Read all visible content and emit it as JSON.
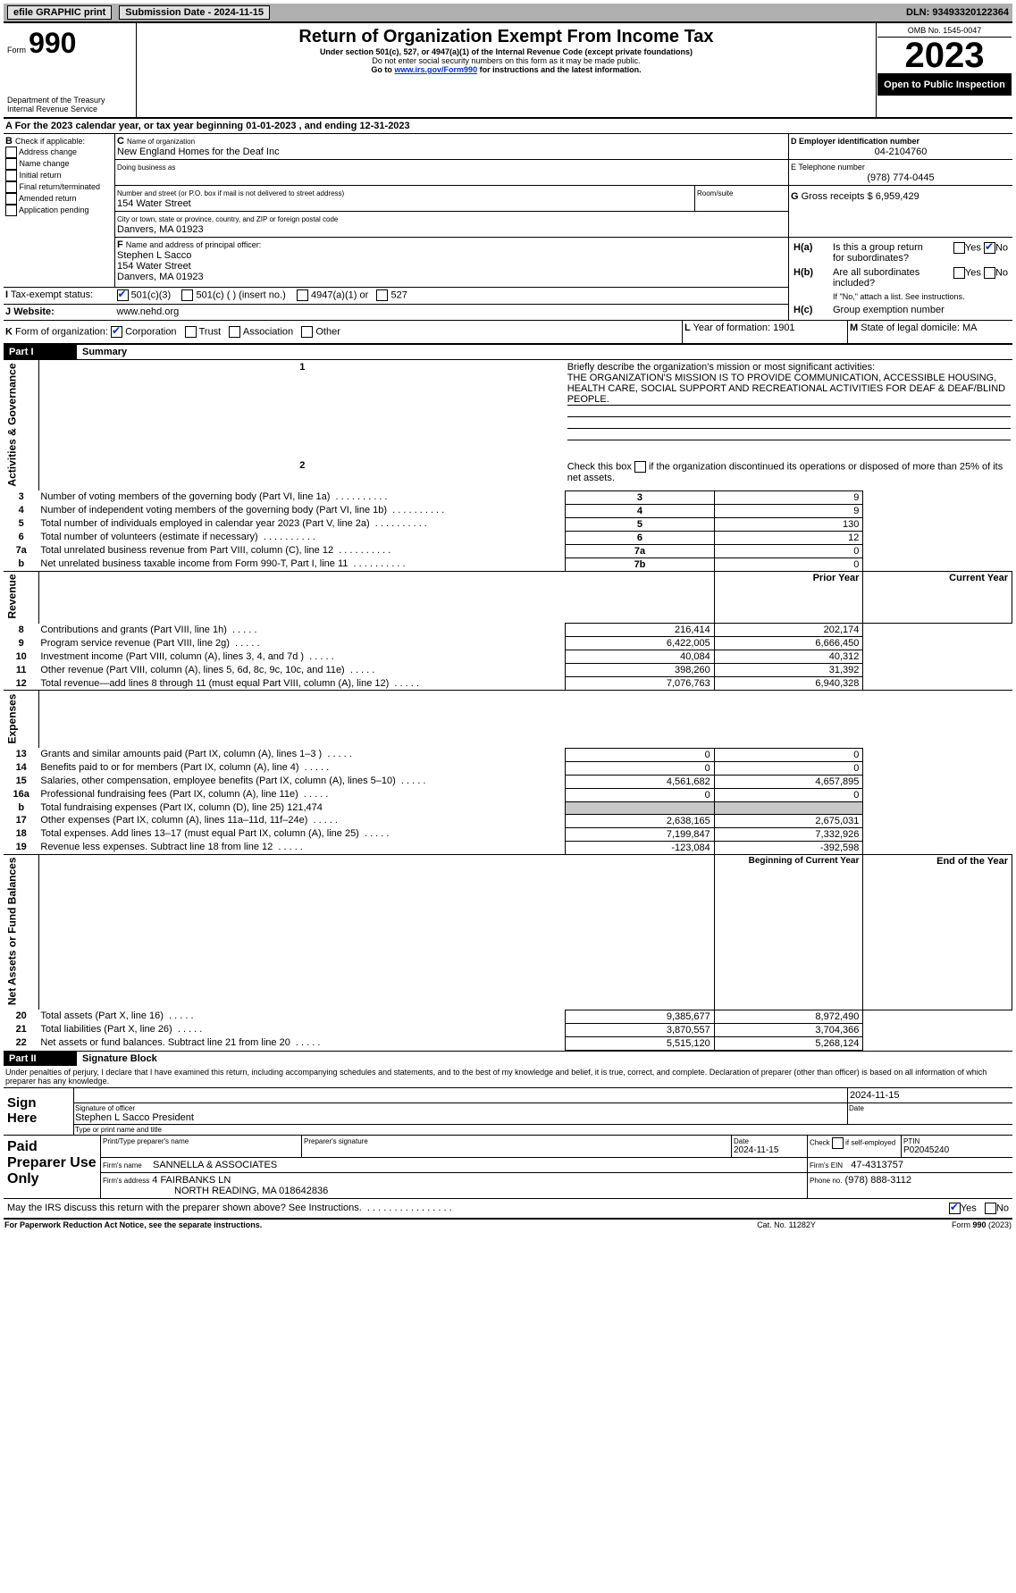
{
  "topbar": {
    "efile": "efile GRAPHIC print",
    "submission": "Submission Date - 2024-11-15",
    "dln_label": "DLN:",
    "dln": "93493320122364"
  },
  "header": {
    "form_label": "Form",
    "form_no": "990",
    "title": "Return of Organization Exempt From Income Tax",
    "subtitle": "Under section 501(c), 527, or 4947(a)(1) of the Internal Revenue Code (except private foundations)",
    "note1": "Do not enter social security numbers on this form as it may be made public.",
    "note2_prefix": "Go to ",
    "note2_link": "www.irs.gov/Form990",
    "note2_suffix": " for instructions and the latest information.",
    "dept1": "Department of the Treasury",
    "dept2": "Internal Revenue Service",
    "omb": "OMB No. 1545-0047",
    "year": "2023",
    "open_label": "Open to Public Inspection"
  },
  "A": {
    "text_prefix": "A For the 2023 calendar year, or tax year beginning ",
    "begin": "01-01-2023",
    "mid": " , and ending ",
    "end": "12-31-2023"
  },
  "B": {
    "label": "B",
    "check_label": "Check if applicable:",
    "opts": [
      "Address change",
      "Name change",
      "Initial return",
      "Final return/terminated",
      "Amended return",
      "Application pending"
    ],
    "checked": [
      false,
      false,
      false,
      false,
      false,
      false
    ]
  },
  "C": {
    "label": "C",
    "name_label": "Name of organization",
    "name": "New England Homes for the Deaf Inc",
    "dba_label": "Doing business as",
    "dba": "",
    "addr_label": "Number and street (or P.O. box if mail is not delivered to street address)",
    "room_label": "Room/suite",
    "addr": "154 Water Street",
    "city_label": "City or town, state or province, country, and ZIP or foreign postal code",
    "city": "Danvers, MA  01923"
  },
  "D": {
    "label": "D Employer identification number",
    "ein": "04-2104760"
  },
  "E": {
    "label": "E Telephone number",
    "phone": "(978) 774-0445"
  },
  "F": {
    "label": "F",
    "addr_label": "Name and address of principal officer:",
    "name": "Stephen L Sacco",
    "addr1": "154 Water Street",
    "addr2": "Danvers, MA  01923"
  },
  "G": {
    "label": "G",
    "text": "Gross receipts $",
    "val": "6,959,429"
  },
  "H": {
    "a_label": "H(a)",
    "a_text": "Is this a group return for subordinates?",
    "a_yes": "Yes",
    "a_no": "No",
    "a_checked_yes": false,
    "a_checked_no": true,
    "b_label": "H(b)",
    "b_text": "Are all subordinates included?",
    "b_yes": "Yes",
    "b_no": "No",
    "b_note": "If \"No,\" attach a list. See instructions.",
    "c_label": "H(c)",
    "c_text": "Group exemption number"
  },
  "I": {
    "label": "I",
    "text": "Tax-exempt status:",
    "opt1": "501(c)(3)",
    "opt2": "501(c) (   ) (insert no.)",
    "opt3": "4947(a)(1) or",
    "opt4": "527",
    "c1": true,
    "c2": false,
    "c3": false,
    "c4": false
  },
  "J": {
    "label": "J",
    "text": "Website:",
    "val": "www.nehd.org"
  },
  "K": {
    "label": "K",
    "text": "Form of organization:",
    "o1": "Corporation",
    "o2": "Trust",
    "o3": "Association",
    "o4": "Other",
    "c1": true,
    "c2": false,
    "c3": false,
    "c4": false
  },
  "L": {
    "label": "L",
    "text": "Year of formation:",
    "val": "1901"
  },
  "M": {
    "label": "M",
    "text": "State of legal domicile:",
    "val": "MA"
  },
  "part1": {
    "label": "Part I",
    "title": "Summary",
    "side_ag": "Activities & Governance",
    "side_rev": "Revenue",
    "side_exp": "Expenses",
    "side_na": "Net Assets or Fund Balances",
    "l1_label": "1",
    "l1_text": "Briefly describe the organization's mission or most significant activities:",
    "l1_val": "THE ORGANIZATION'S MISSION IS TO PROVIDE COMMUNICATION, ACCESSIBLE HOUSING, HEALTH CARE, SOCIAL SUPPORT AND RECREATIONAL ACTIVITIES FOR DEAF & DEAF/BLIND PEOPLE.",
    "l2_label": "2",
    "l2_text": "Check this box          if the organization discontinued its operations or disposed of more than 25% of its net assets.",
    "lines_ag": [
      {
        "n": "3",
        "t": "Number of voting members of the governing body (Part VI, line 1a)",
        "box": "3",
        "v": "9"
      },
      {
        "n": "4",
        "t": "Number of independent voting members of the governing body (Part VI, line 1b)",
        "box": "4",
        "v": "9"
      },
      {
        "n": "5",
        "t": "Total number of individuals employed in calendar year 2023 (Part V, line 2a)",
        "box": "5",
        "v": "130"
      },
      {
        "n": "6",
        "t": "Total number of volunteers (estimate if necessary)",
        "box": "6",
        "v": "12"
      },
      {
        "n": "7a",
        "t": "Total unrelated business revenue from Part VIII, column (C), line 12",
        "box": "7a",
        "v": "0"
      },
      {
        "n": "b",
        "t": "Net unrelated business taxable income from Form 990-T, Part I, line 11",
        "box": "7b",
        "v": "0"
      }
    ],
    "col_prior": "Prior Year",
    "col_current": "Current Year",
    "lines_rev": [
      {
        "n": "8",
        "t": "Contributions and grants (Part VIII, line 1h)",
        "p": "216,414",
        "c": "202,174"
      },
      {
        "n": "9",
        "t": "Program service revenue (Part VIII, line 2g)",
        "p": "6,422,005",
        "c": "6,666,450"
      },
      {
        "n": "10",
        "t": "Investment income (Part VIII, column (A), lines 3, 4, and 7d )",
        "p": "40,084",
        "c": "40,312"
      },
      {
        "n": "11",
        "t": "Other revenue (Part VIII, column (A), lines 5, 6d, 8c, 9c, 10c, and 11e)",
        "p": "398,260",
        "c": "31,392"
      },
      {
        "n": "12",
        "t": "Total revenue—add lines 8 through 11 (must equal Part VIII, column (A), line 12)",
        "p": "7,076,763",
        "c": "6,940,328"
      }
    ],
    "lines_exp": [
      {
        "n": "13",
        "t": "Grants and similar amounts paid (Part IX, column (A), lines 1–3 )",
        "p": "0",
        "c": "0"
      },
      {
        "n": "14",
        "t": "Benefits paid to or for members (Part IX, column (A), line 4)",
        "p": "0",
        "c": "0"
      },
      {
        "n": "15",
        "t": "Salaries, other compensation, employee benefits (Part IX, column (A), lines 5–10)",
        "p": "4,561,682",
        "c": "4,657,895"
      },
      {
        "n": "16a",
        "t": "Professional fundraising fees (Part IX, column (A), line 11e)",
        "p": "0",
        "c": "0"
      },
      {
        "n": "b",
        "t": "Total fundraising expenses (Part IX, column (D), line 25) 121,474",
        "p": "",
        "c": "",
        "shade": true
      },
      {
        "n": "17",
        "t": "Other expenses (Part IX, column (A), lines 11a–11d, 11f–24e)",
        "p": "2,638,165",
        "c": "2,675,031"
      },
      {
        "n": "18",
        "t": "Total expenses. Add lines 13–17 (must equal Part IX, column (A), line 25)",
        "p": "7,199,847",
        "c": "7,332,926"
      },
      {
        "n": "19",
        "t": "Revenue less expenses. Subtract line 18 from line 12",
        "p": "-123,084",
        "c": "-392,598"
      }
    ],
    "col_begin": "Beginning of Current Year",
    "col_end": "End of the Year",
    "lines_na": [
      {
        "n": "20",
        "t": "Total assets (Part X, line 16)",
        "p": "9,385,677",
        "c": "8,972,490"
      },
      {
        "n": "21",
        "t": "Total liabilities (Part X, line 26)",
        "p": "3,870,557",
        "c": "3,704,366"
      },
      {
        "n": "22",
        "t": "Net assets or fund balances. Subtract line 21 from line 20",
        "p": "5,515,120",
        "c": "5,268,124"
      }
    ]
  },
  "part2": {
    "label": "Part II",
    "title": "Signature Block",
    "perjury": "Under penalties of perjury, I declare that I have examined this return, including accompanying schedules and statements, and to the best of my knowledge and belief, it is true, correct, and complete. Declaration of preparer (other than officer) is based on all information of which preparer has any knowledge.",
    "sign_here": "Sign Here",
    "sig_label": "Signature of officer",
    "sig_name": "Stephen L Sacco  President",
    "sig_type": "Type or print name and title",
    "date_label": "Date",
    "date": "2024-11-15",
    "paid": {
      "title": "Paid Preparer Use Only",
      "pname_label": "Print/Type preparer's name",
      "psig_label": "Preparer's signature",
      "pdate_label": "Date",
      "pdate": "2024-11-15",
      "pcheck_label": "Check         if self-employed",
      "ptin_label": "PTIN",
      "ptin": "P02045240",
      "firm_name_label": "Firm's name",
      "firm_name": "SANNELLA & ASSOCIATES",
      "firm_ein_label": "Firm's EIN",
      "firm_ein": "47-4313757",
      "firm_addr_label": "Firm's address",
      "firm_addr1": "4 FAIRBANKS LN",
      "firm_addr2": "NORTH READING, MA  018642836",
      "firm_phone_label": "Phone no.",
      "firm_phone": "(978) 888-3112"
    },
    "discuss": "May the IRS discuss this return with the preparer shown above? See Instructions.",
    "discuss_yes": "Yes",
    "discuss_no": "No",
    "discuss_yes_c": true,
    "discuss_no_c": false
  },
  "footer": {
    "pra": "For Paperwork Reduction Act Notice, see the separate instructions.",
    "cat": "Cat. No. 11282Y",
    "form": "Form 990 (2023)"
  }
}
